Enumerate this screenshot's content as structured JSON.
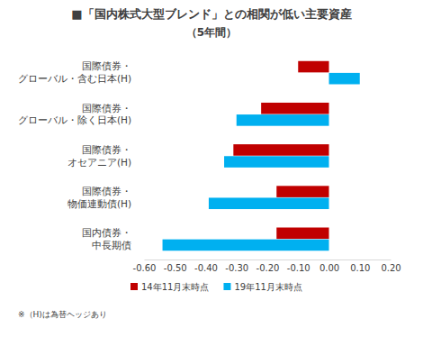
{
  "chart_data": {
    "type": "bar",
    "orientation": "horizontal",
    "title": "■「国内株式大型ブレンド」との相関が低い主要資産",
    "subtitle": "（5年間）",
    "categories": [
      "国際債券・グローバル・含む日本(H)",
      "国際債券・グローバル・除く日本(H)",
      "国際債券・オセアニア(H)",
      "国際債券・物価連動債(H)",
      "国内債券・中長期債"
    ],
    "series": [
      {
        "name": "14年11月末時点",
        "color": "#c00000",
        "values": [
          -0.1,
          -0.22,
          -0.31,
          -0.17,
          -0.17
        ]
      },
      {
        "name": "19年11月末時点",
        "color": "#00b0f0",
        "values": [
          0.1,
          -0.3,
          -0.34,
          -0.39,
          -0.54
        ]
      }
    ],
    "xlim": [
      -0.6,
      0.2
    ],
    "xticks": [
      {
        "value": -0.6,
        "label": "-0.60"
      },
      {
        "value": -0.5,
        "label": "-0.50"
      },
      {
        "value": -0.4,
        "label": "-0.40"
      },
      {
        "value": -0.3,
        "label": "-0.30"
      },
      {
        "value": -0.2,
        "label": "-0.20"
      },
      {
        "value": -0.1,
        "label": "-0.10"
      },
      {
        "value": 0,
        "label": "0.00"
      },
      {
        "value": 0.1,
        "label": "0.10"
      },
      {
        "value": 0.2,
        "label": "0.20"
      }
    ],
    "grid": false,
    "legend": "bottom",
    "annotations": [
      "※（H)は為替ヘッジあり"
    ]
  }
}
